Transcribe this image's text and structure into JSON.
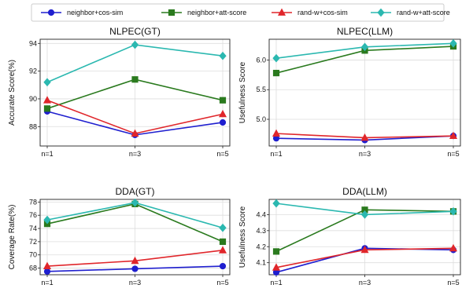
{
  "legend": [
    {
      "label": "neighbor+cos-sim",
      "color": "#1f1fcf",
      "marker": "circle"
    },
    {
      "label": "neighbor+att-score",
      "color": "#2a7a1e",
      "marker": "square"
    },
    {
      "label": "rand-w+cos-sim",
      "color": "#e0262b",
      "marker": "triangle"
    },
    {
      "label": "rand-w+att-score",
      "color": "#2bb8b0",
      "marker": "diamond"
    }
  ],
  "chart_data": [
    {
      "type": "line",
      "title": "NLPEC(GT)",
      "ylabel": "Accurate Score(%)",
      "xlabel": "",
      "categories": [
        "n=1",
        "n=3",
        "n=5"
      ],
      "ylim": [
        86.6,
        94.3
      ],
      "yticks": [
        88,
        90,
        92,
        94
      ],
      "ytick_labels": [
        "88",
        "90",
        "92",
        "94"
      ],
      "grid": true,
      "series": [
        {
          "name": "neighbor+cos-sim",
          "values": [
            89.1,
            87.4,
            88.3
          ]
        },
        {
          "name": "neighbor+att-score",
          "values": [
            89.3,
            91.4,
            89.9
          ]
        },
        {
          "name": "rand-w+cos-sim",
          "values": [
            89.9,
            87.5,
            88.9
          ]
        },
        {
          "name": "rand-w+att-score",
          "values": [
            91.2,
            93.9,
            93.1
          ]
        }
      ]
    },
    {
      "type": "line",
      "title": "NLPEC(LLM)",
      "ylabel": "Usefulness Score",
      "xlabel": "",
      "categories": [
        "n=1",
        "n=3",
        "n=5"
      ],
      "ylim": [
        4.55,
        6.35
      ],
      "yticks": [
        5.0,
        5.5,
        6.0
      ],
      "ytick_labels": [
        "5.0",
        "5.5",
        "6.0"
      ],
      "grid": true,
      "series": [
        {
          "name": "neighbor+cos-sim",
          "values": [
            4.68,
            4.65,
            4.72
          ]
        },
        {
          "name": "neighbor+att-score",
          "values": [
            5.78,
            6.16,
            6.23
          ]
        },
        {
          "name": "rand-w+cos-sim",
          "values": [
            4.76,
            4.69,
            4.72
          ]
        },
        {
          "name": "rand-w+att-score",
          "values": [
            6.03,
            6.22,
            6.28
          ]
        }
      ]
    },
    {
      "type": "line",
      "title": "DDA(GT)",
      "ylabel": "Coverage Rate(%)",
      "xlabel": "",
      "categories": [
        "n=1",
        "n=3",
        "n=5"
      ],
      "ylim": [
        67.0,
        78.4
      ],
      "yticks": [
        68,
        70,
        72,
        74,
        76,
        78
      ],
      "ytick_labels": [
        "68",
        "70",
        "72",
        "74",
        "76",
        "78"
      ],
      "grid": true,
      "series": [
        {
          "name": "neighbor+cos-sim",
          "values": [
            67.5,
            67.9,
            68.3
          ]
        },
        {
          "name": "neighbor+att-score",
          "values": [
            74.7,
            77.7,
            72.0
          ]
        },
        {
          "name": "rand-w+cos-sim",
          "values": [
            68.3,
            69.1,
            70.7
          ]
        },
        {
          "name": "rand-w+att-score",
          "values": [
            75.3,
            77.9,
            74.1
          ]
        }
      ]
    },
    {
      "type": "line",
      "title": "DDA(LLM)",
      "ylabel": "Usefulness Score",
      "xlabel": "",
      "categories": [
        "n=1",
        "n=3",
        "n=5"
      ],
      "ylim": [
        4.025,
        4.495
      ],
      "yticks": [
        4.1,
        4.2,
        4.3,
        4.4
      ],
      "ytick_labels": [
        "4.1",
        "4.2",
        "4.3",
        "4.4"
      ],
      "grid": true,
      "series": [
        {
          "name": "neighbor+cos-sim",
          "values": [
            4.04,
            4.19,
            4.18
          ]
        },
        {
          "name": "neighbor+att-score",
          "values": [
            4.17,
            4.43,
            4.42
          ]
        },
        {
          "name": "rand-w+cos-sim",
          "values": [
            4.07,
            4.18,
            4.19
          ]
        },
        {
          "name": "rand-w+att-score",
          "values": [
            4.47,
            4.4,
            4.42
          ]
        }
      ]
    }
  ]
}
